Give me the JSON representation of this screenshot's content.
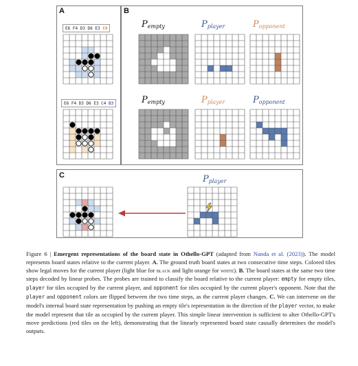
{
  "panels": {
    "a": "A",
    "b": "B",
    "c": "C"
  },
  "sequences": {
    "top": {
      "prefix": "E6 F4 D3 D6 E3 ",
      "last": "C4",
      "last_color": "#c98a3a"
    },
    "bottom": {
      "prefix": "E6 F4 D3 D6 E3 C4 ",
      "last": "B3",
      "last_color": "#5a6fa8"
    }
  },
  "titles": {
    "empty": {
      "main": "P",
      "sub": "empty"
    },
    "player": {
      "main": "P",
      "sub": "player"
    },
    "opponent": {
      "main": "P",
      "sub": "opponent"
    }
  },
  "colors": {
    "light_blue": "#cddcf0",
    "light_orange": "#f9e3c4",
    "empty_gray": "#a9a9a9",
    "blue": "#5b7bb0",
    "orange": "#c0825a",
    "red": "#e8a8a8",
    "arrow": "#c0393b",
    "grid": "#555555",
    "link": "#2b4aa8"
  },
  "boards": {
    "a1": {
      "pieces": [
        [
          "E4",
          "b"
        ],
        [
          "F4",
          "b"
        ],
        [
          "C5",
          "b"
        ],
        [
          "D5",
          "b"
        ],
        [
          "E5",
          "b"
        ],
        [
          "D6",
          "w"
        ],
        [
          "E6",
          "w"
        ],
        [
          "E7",
          "w"
        ]
      ],
      "legal": [
        "D3",
        "E3",
        "D4",
        "B5",
        "F5",
        "B6",
        "C6",
        "F6",
        "C7",
        "D7",
        "F7"
      ]
    },
    "a2": {
      "pieces": [
        [
          "B3",
          "b"
        ],
        [
          "C4",
          "b"
        ],
        [
          "D4",
          "b"
        ],
        [
          "E4",
          "b"
        ],
        [
          "F4",
          "b"
        ],
        [
          "C5",
          "b"
        ],
        [
          "D5",
          "w"
        ],
        [
          "E5",
          "b"
        ],
        [
          "C6",
          "w"
        ],
        [
          "D6",
          "w"
        ],
        [
          "E6",
          "w"
        ],
        [
          "E7",
          "w"
        ]
      ],
      "legal": [
        "B4",
        "B5",
        "F5",
        "B6",
        "F6",
        "B7",
        "D7"
      ]
    },
    "c": {
      "pieces": [
        [
          "D4",
          "b"
        ],
        [
          "B5",
          "b"
        ],
        [
          "C5",
          "b"
        ],
        [
          "D5",
          "b"
        ],
        [
          "E5",
          "b"
        ],
        [
          "C6",
          "b"
        ],
        [
          "D6",
          "w"
        ],
        [
          "E6",
          "w"
        ],
        [
          "E7",
          "w"
        ]
      ],
      "legal": [
        "C3",
        "E3",
        "E4",
        "F4",
        "B6",
        "F6",
        "C7",
        "D7"
      ],
      "red": [
        "D3",
        "D7"
      ]
    },
    "b_empty_1": {
      "white": [
        "E3",
        "D4",
        "E4",
        "C5",
        "D5",
        "E5",
        "F5",
        "D6",
        "E6",
        "F6"
      ]
    },
    "b_player_1": {
      "blue": [
        "C6",
        "E6",
        "F6"
      ]
    },
    "b_opponent_1": {
      "orange": [
        "E4",
        "E5",
        "E6"
      ]
    },
    "b_empty_2": {
      "white": [
        "E3",
        "C4",
        "D4",
        "F4",
        "C5",
        "D5",
        "E5",
        "F5",
        "D6",
        "E6",
        "F6"
      ]
    },
    "b_player_2": {
      "orange": [
        "E5",
        "E6"
      ]
    },
    "b_opponent_2": {
      "blue": [
        "B3",
        "C4",
        "D4",
        "E4",
        "F4",
        "D5",
        "F5",
        "F6"
      ]
    },
    "c_player": {
      "blue": [
        "C5",
        "D5",
        "E5",
        "B6",
        "E6"
      ],
      "flash_at": "D4"
    }
  },
  "caption": {
    "fig": "Figure 6 |",
    "heading": "Emergent representations of the board state in Othello-GPT",
    "adapted_pre": "(adapted from",
    "adapted_link": "Nanda et al. (2023)",
    "adapted_post": ").",
    "s1": "The model represents board states relative to the current player.",
    "a_label": "A.",
    "a_text": "The ground truth board states at two consecutive time steps. Colored tiles show legal moves for the current player (light blue for",
    "black_word": "black",
    "a_text2": "and light orange for",
    "white_word": "white",
    "a_end": ").",
    "b_label": "B.",
    "b_text": "The board states at the same two time steps decoded by linear probes. The probes are trained to classify the board relative to the current player:",
    "empty_word": "empty",
    "b_text2": "for empty tiles,",
    "player_word": "player",
    "b_text3": "for tiles occupied by the current player, and",
    "opponent_word": "opponent",
    "b_text4": "for tiles occupied by the current player's opponent. Note that the",
    "player_word2": "player",
    "and_word": "and",
    "opponent_word2": "opponent",
    "b_text5": "colors are flipped between the two time steps, as the current player changes.",
    "c_label": "C.",
    "c_text": "We can intervene on the model's internal board state representation by pushing an empty tile's representation in the direction of the",
    "player_word3": "player",
    "c_text2": "vector, to make the model represent that tile as occupied by the current player. This simple linear intervention is sufficient to alter Othello-GPT's move predictions (red tiles on the left), demonstrating that the linearly represented board state causally determines the model's outputs."
  }
}
